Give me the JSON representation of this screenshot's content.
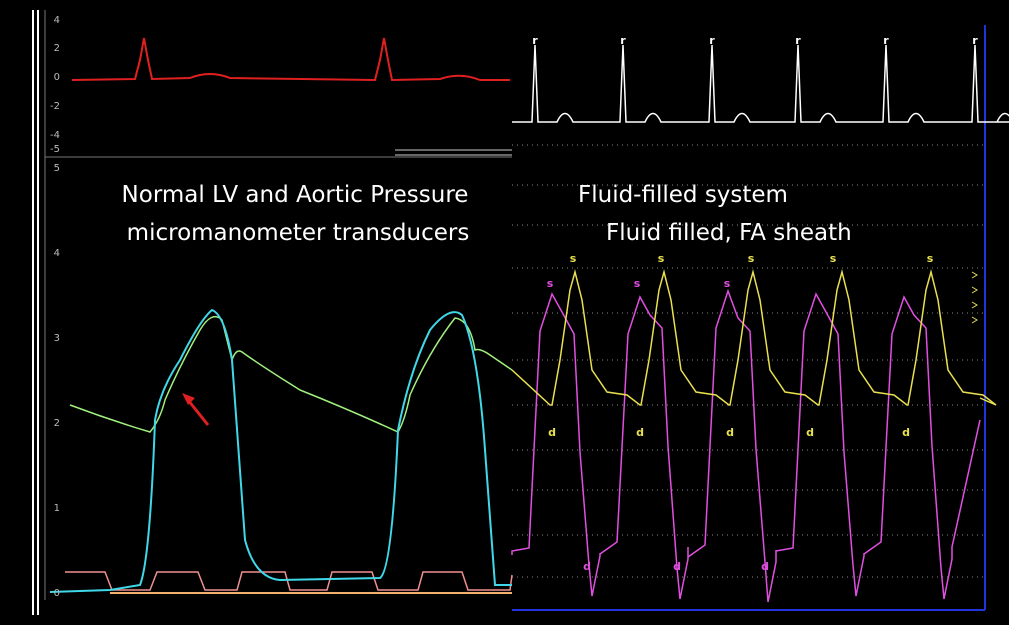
{
  "left_panel": {
    "ecg_axis_labels": [
      4,
      2,
      0,
      -2,
      -4,
      -5
    ],
    "pressure_axis_labels": [
      5,
      4,
      3,
      2,
      1,
      0
    ],
    "caption_lines": [
      "Normal LV and Aortic Pressure",
      "micromanometer transducers"
    ]
  },
  "right_panel": {
    "caption_lines": [
      "Fluid-filled system",
      "Fluid filled, FA sheath"
    ],
    "r_markers": [
      "r",
      "r",
      "r",
      "r",
      "r",
      "r"
    ],
    "yellow_s_markers": [
      "s",
      "s",
      "s",
      "s",
      "s"
    ],
    "yellow_d_markers": [
      "d",
      "d",
      "d",
      "d",
      "d"
    ],
    "magenta_s_markers": [
      "s",
      "s",
      "s"
    ],
    "magenta_d_markers": [
      "d",
      "d",
      "d"
    ]
  }
}
